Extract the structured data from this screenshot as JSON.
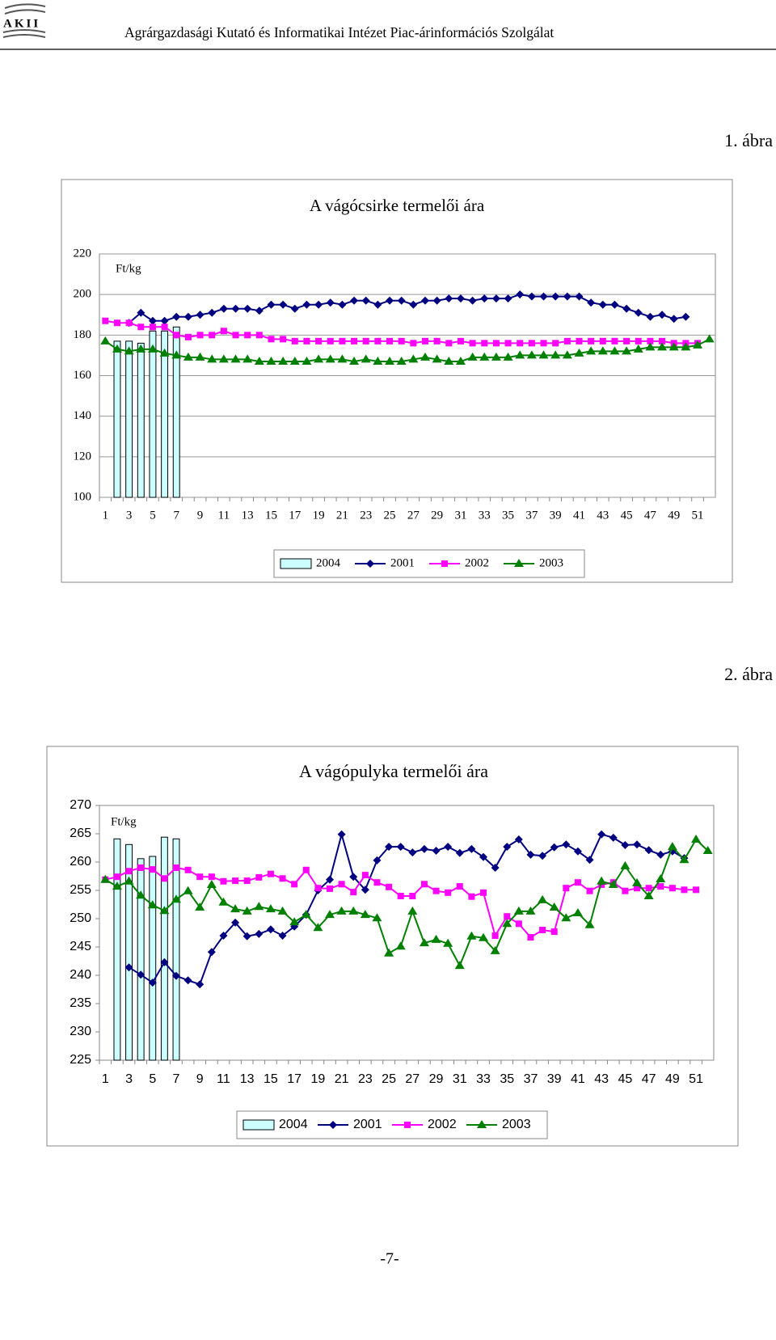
{
  "header": {
    "logo": "AKII",
    "text": "Agrárgazdasági Kutató és Informatikai Intézet Piac-árinformációs Szolgálat"
  },
  "figure_labels": [
    "1. ábra",
    "2. ábra"
  ],
  "page_number": "-7-",
  "chart_data": [
    {
      "type": "combo",
      "title": "A vágócsirke termelői ára",
      "y_unit": "Ft/kg",
      "ylim": [
        100,
        220
      ],
      "yticks": [
        100,
        120,
        140,
        160,
        180,
        200,
        220
      ],
      "grid": true,
      "categories": [
        1,
        null,
        3,
        null,
        5,
        null,
        7,
        null,
        9,
        null,
        11,
        null,
        13,
        null,
        15,
        null,
        17,
        null,
        19,
        null,
        21,
        null,
        23,
        null,
        25,
        null,
        27,
        null,
        29,
        null,
        31,
        null,
        33,
        null,
        35,
        null,
        37,
        null,
        39,
        null,
        41,
        null,
        43,
        null,
        45,
        null,
        47,
        null,
        49,
        null,
        51,
        null
      ],
      "series": [
        {
          "name": "2004",
          "type": "bar",
          "color": "#ccffff",
          "values": [
            null,
            177,
            177,
            176,
            182,
            182,
            184,
            null,
            null,
            null,
            null,
            null,
            null,
            null,
            null,
            null,
            null,
            null,
            null,
            null,
            null,
            null,
            null,
            null,
            null,
            null,
            null,
            null,
            null,
            null,
            null,
            null,
            null,
            null,
            null,
            null,
            null,
            null,
            null,
            null,
            null,
            null,
            null,
            null,
            null,
            null,
            null,
            null,
            null,
            null,
            null,
            null
          ]
        },
        {
          "name": "2001",
          "type": "line",
          "marker": "diamond",
          "color": "#000080",
          "values": [
            null,
            null,
            186,
            191,
            187,
            187,
            189,
            189,
            190,
            191,
            193,
            193,
            193,
            192,
            195,
            195,
            193,
            195,
            195,
            196,
            195,
            197,
            197,
            195,
            197,
            197,
            195,
            197,
            197,
            198,
            198,
            197,
            198,
            198,
            198,
            200,
            199,
            199,
            199,
            199,
            199,
            196,
            195,
            195,
            193,
            191,
            189,
            190,
            188,
            189,
            null,
            null
          ]
        },
        {
          "name": "2002",
          "type": "line",
          "marker": "square",
          "color": "#ff00ff",
          "values": [
            187,
            186,
            186,
            184,
            184,
            184,
            180,
            179,
            180,
            180,
            182,
            180,
            180,
            180,
            178,
            178,
            177,
            177,
            177,
            177,
            177,
            177,
            177,
            177,
            177,
            177,
            176,
            177,
            177,
            176,
            177,
            176,
            176,
            176,
            176,
            176,
            176,
            176,
            176,
            177,
            177,
            177,
            177,
            177,
            177,
            177,
            177,
            177,
            176,
            176,
            176,
            null
          ]
        },
        {
          "name": "2003",
          "type": "line",
          "marker": "triangle",
          "color": "#008000",
          "values": [
            177,
            173,
            172,
            173,
            173,
            171,
            170,
            169,
            169,
            168,
            168,
            168,
            168,
            167,
            167,
            167,
            167,
            167,
            168,
            168,
            168,
            167,
            168,
            167,
            167,
            167,
            168,
            169,
            168,
            167,
            167,
            169,
            169,
            169,
            169,
            170,
            170,
            170,
            170,
            170,
            171,
            172,
            172,
            172,
            172,
            173,
            174,
            174,
            174,
            174,
            175,
            178
          ]
        }
      ]
    },
    {
      "type": "combo",
      "title": "A vágópulyka termelői ára",
      "y_unit": "Ft/kg",
      "ylim": [
        225,
        270
      ],
      "yticks": [
        225,
        230,
        235,
        240,
        245,
        250,
        255,
        260,
        265,
        270
      ],
      "grid": false,
      "categories": [
        1,
        null,
        3,
        null,
        5,
        null,
        7,
        null,
        9,
        null,
        11,
        null,
        13,
        null,
        15,
        null,
        17,
        null,
        19,
        null,
        21,
        null,
        23,
        null,
        25,
        null,
        27,
        null,
        29,
        null,
        31,
        null,
        33,
        null,
        35,
        null,
        37,
        null,
        39,
        null,
        41,
        null,
        43,
        null,
        45,
        null,
        47,
        null,
        49,
        null,
        51,
        null
      ],
      "series": [
        {
          "name": "2004",
          "type": "bar",
          "color": "#ccffff",
          "values": [
            null,
            264.1,
            263.1,
            260.6,
            261,
            264.4,
            264.1,
            null,
            null,
            null,
            null,
            null,
            null,
            null,
            null,
            null,
            null,
            null,
            null,
            null,
            null,
            null,
            null,
            null,
            null,
            null,
            null,
            null,
            null,
            null,
            null,
            null,
            null,
            null,
            null,
            null,
            null,
            null,
            null,
            null,
            null,
            null,
            null,
            null,
            null,
            null,
            null,
            null,
            null,
            null,
            null,
            null
          ]
        },
        {
          "name": "2001",
          "type": "line",
          "marker": "diamond",
          "color": "#000080",
          "values": [
            null,
            null,
            241.4,
            240.1,
            238.7,
            242.3,
            239.9,
            239.1,
            238.4,
            244.1,
            247,
            249.3,
            246.9,
            247.3,
            248.1,
            247,
            248.6,
            250.7,
            255,
            256.9,
            264.9,
            257.4,
            255.1,
            260.3,
            262.7,
            262.7,
            261.7,
            262.3,
            262,
            262.7,
            261.6,
            262.3,
            260.9,
            259,
            262.7,
            264,
            261.3,
            261.1,
            262.6,
            263.1,
            261.9,
            260.4,
            264.9,
            264.3,
            263,
            263.1,
            262.1,
            261.3,
            261.9,
            260.7,
            null,
            null
          ]
        },
        {
          "name": "2002",
          "type": "line",
          "marker": "square",
          "color": "#ff00ff",
          "values": [
            256.9,
            257.4,
            258.4,
            259,
            258.7,
            257.1,
            259,
            258.6,
            257.4,
            257.4,
            256.6,
            256.7,
            256.7,
            257.3,
            257.9,
            257.1,
            256.1,
            258.6,
            255.4,
            255.3,
            256.1,
            254.7,
            257.7,
            256.4,
            255.6,
            254,
            254,
            256.1,
            254.9,
            254.6,
            255.7,
            253.9,
            254.6,
            247,
            250.4,
            249.1,
            246.7,
            248,
            247.7,
            255.4,
            256.4,
            254.9,
            256,
            256.4,
            254.9,
            255.4,
            255.4,
            255.7,
            255.4,
            255.1,
            255.1,
            null
          ]
        },
        {
          "name": "2003",
          "type": "line",
          "marker": "triangle",
          "color": "#008000",
          "values": [
            256.9,
            255.7,
            256.6,
            254.1,
            252.4,
            251.4,
            253.4,
            254.9,
            252,
            256,
            252.9,
            251.7,
            251.3,
            252.1,
            251.7,
            251.3,
            249.4,
            250.7,
            248.4,
            250.7,
            251.3,
            251.3,
            250.7,
            250.1,
            243.9,
            245.1,
            251.3,
            245.7,
            246.3,
            245.6,
            241.7,
            246.9,
            246.6,
            244.3,
            249.1,
            251.3,
            251.3,
            253.3,
            252,
            250.1,
            251,
            248.9,
            256.6,
            256,
            259.3,
            256.3,
            254,
            257,
            262.7,
            260.4,
            264,
            262
          ]
        }
      ]
    }
  ]
}
